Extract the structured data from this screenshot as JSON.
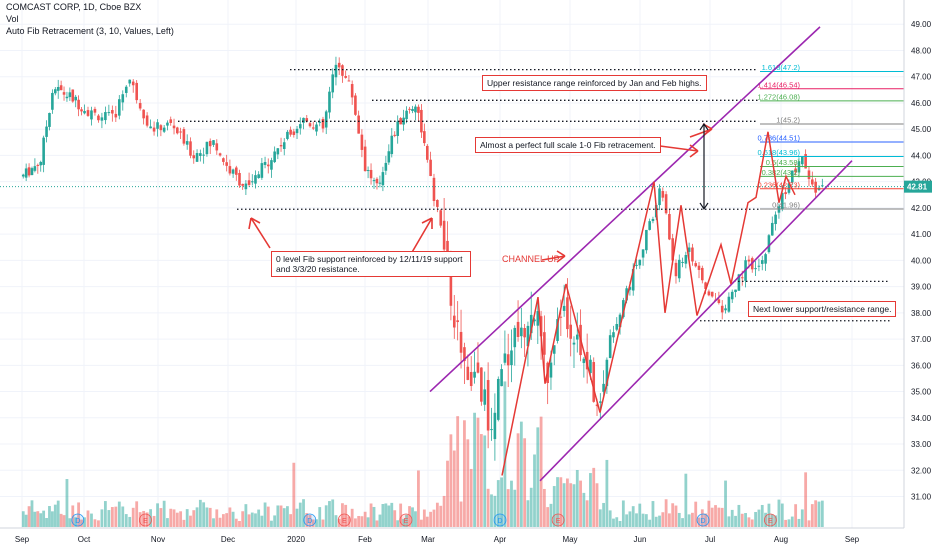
{
  "header": {
    "symbol_line": "COMCAST CORP, 1D, Cboe BZX",
    "vol_label": "Vol",
    "fib_label": "Auto Fib Retracement (3, 10, Values, Left)"
  },
  "annotations": {
    "upper_resistance": "Upper resistance range reinforced by Jan and Feb highs.",
    "fib_retracement": "Almost a perfect full scale 1-0 Fib retracement.",
    "zero_level_support": "0 level Fib support reinforced by 12/11/19 support and 3/3/20 resistance.",
    "channel_up": "CHANNEL UP",
    "next_lower": "Next lower support/resistance range."
  },
  "colors": {
    "up": "#26a69a",
    "down": "#ef5350",
    "channel": "#9c27b0",
    "zigzag": "#e53935",
    "current_price_bg": "#26a69a",
    "fib_1618": "#00bcd4",
    "fib_1414": "#e91e63",
    "fib_1272": "#4caf50",
    "fib_1": "#808080",
    "fib_0786": "#2962ff",
    "fib_0618": "#00bcd4",
    "fib_05": "#4caf50",
    "fib_0382": "#4caf50",
    "fib_0236": "#f44336",
    "fib_0": "#808080"
  },
  "chart_data": {
    "type": "candlestick",
    "symbol": "COMCAST CORP",
    "interval": "1D",
    "exchange": "Cboe BZX",
    "current_price": "42.81",
    "y_axis": {
      "min": 30.6,
      "max": 49.2,
      "ticks": [
        "31.00",
        "32.00",
        "33.00",
        "34.00",
        "35.00",
        "36.00",
        "37.00",
        "38.00",
        "39.00",
        "40.00",
        "41.00",
        "42.00",
        "43.00",
        "44.00",
        "45.00",
        "46.00",
        "47.00",
        "48.00",
        "49.00"
      ]
    },
    "x_axis": {
      "labels": [
        "Sep",
        "Oct",
        "Nov",
        "Dec",
        "2020",
        "Feb",
        "Mar",
        "Apr",
        "May",
        "Jun",
        "Jul",
        "Aug",
        "Sep"
      ]
    },
    "fib_levels": [
      {
        "label": "1.618(47.2)",
        "level": 1.618,
        "price": 47.2
      },
      {
        "label": "1.414(46.54)",
        "level": 1.414,
        "price": 46.54
      },
      {
        "label": "1.272(46.08)",
        "level": 1.272,
        "price": 46.08
      },
      {
        "label": "1(45.2)",
        "level": 1,
        "price": 45.2
      },
      {
        "label": "0.786(44.51)",
        "level": 0.786,
        "price": 44.51
      },
      {
        "label": "0.618(43.96)",
        "level": 0.618,
        "price": 43.96
      },
      {
        "label": "0.5(43.58)",
        "level": 0.5,
        "price": 43.58
      },
      {
        "label": "0.382(43.2)",
        "level": 0.382,
        "price": 43.2
      },
      {
        "label": "0.236(42.73)",
        "level": 0.236,
        "price": 42.73
      },
      {
        "label": "0(41.96)",
        "level": 0,
        "price": 41.96
      }
    ],
    "event_markers": [
      {
        "kind": "D",
        "month_pos": 0.9
      },
      {
        "kind": "E",
        "month_pos": 1.83
      },
      {
        "kind": "E",
        "month_pos": 4.7
      },
      {
        "kind": "D",
        "month_pos": 4.2
      },
      {
        "kind": "E",
        "month_pos": 5.65
      },
      {
        "kind": "D",
        "month_pos": 7.0
      },
      {
        "kind": "E",
        "month_pos": 7.83
      },
      {
        "kind": "D",
        "month_pos": 9.9
      },
      {
        "kind": "E",
        "month_pos": 10.85
      }
    ],
    "horizontal_levels": [
      {
        "name": "upper-resistance-1",
        "price": 47.27
      },
      {
        "name": "upper-resistance-2",
        "price": 46.1
      },
      {
        "name": "mid-resistance",
        "price": 45.3
      },
      {
        "name": "zero-fib-support",
        "price": 41.95
      },
      {
        "name": "next-lower-1",
        "price": 39.2
      },
      {
        "name": "next-lower-2",
        "price": 37.7
      }
    ],
    "channel": {
      "upper": [
        [
          "2020-03-23",
          35.0
        ],
        [
          "2020-08-08",
          48.9
        ]
      ],
      "lower": [
        [
          "2020-04-20",
          31.6
        ],
        [
          "2020-08-20",
          43.8
        ]
      ]
    },
    "zigzag_prices": [
      31.8,
      38.6,
      35.3,
      39.1,
      34.2,
      43.0,
      38.0,
      42.1,
      37.9,
      40.6,
      39.1,
      42.2,
      42.4,
      44.9,
      42.2,
      43.2,
      42.5
    ],
    "channel_arrow_price": 40.3
  }
}
